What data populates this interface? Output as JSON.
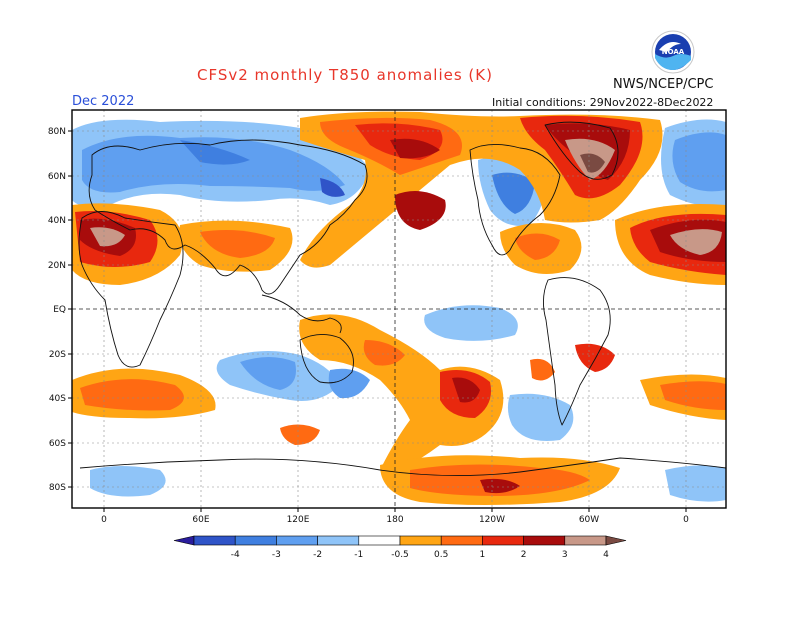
{
  "header": {
    "title": "CFSv2 monthly T850 anomalies (K)",
    "agency": "NWS/NCEP/CPC",
    "month": "Dec 2022",
    "initial_conditions": "Initial conditions: 29Nov2022-8Dec2022",
    "logo_text": "NOAA"
  },
  "map": {
    "lat_ticks": [
      "80N",
      "60N",
      "40N",
      "20N",
      "EQ",
      "20S",
      "40S",
      "60S",
      "80S"
    ],
    "lon_ticks": [
      "0",
      "60E",
      "120E",
      "180",
      "120W",
      "60W",
      "0"
    ]
  },
  "colorbar": {
    "labels": [
      "-4",
      "-3",
      "-2",
      "-1",
      "-0.5",
      "0.5",
      "1",
      "2",
      "3",
      "4"
    ],
    "colors": [
      "#2a1c9c",
      "#2f54c8",
      "#3f7fe0",
      "#5f9ff0",
      "#8fc4f8",
      "#ffffff",
      "#ffa514",
      "#ff6a12",
      "#e8280e",
      "#a80c0c",
      "#c89888",
      "#7a4a42"
    ]
  }
}
